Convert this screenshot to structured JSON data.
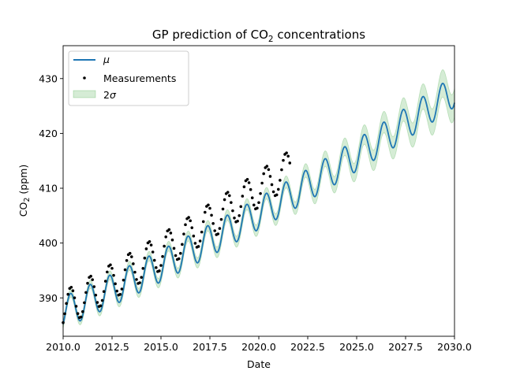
{
  "chart_data": {
    "type": "line",
    "title_main": "GP prediction of CO",
    "title_sub": "2",
    "title_tail": " concentrations",
    "xlabel": "Date",
    "ylabel_main": "CO",
    "ylabel_sub": "2",
    "ylabel_tail": " (ppm)",
    "xlim": [
      2010.0,
      2030.0
    ],
    "ylim": [
      383.0,
      436.0
    ],
    "x_ticks": [
      2010.0,
      2012.5,
      2015.0,
      2017.5,
      2020.0,
      2022.5,
      2025.0,
      2027.5,
      2030.0
    ],
    "x_tick_labels": [
      "2010.0",
      "2012.5",
      "2015.0",
      "2017.5",
      "2020.0",
      "2022.5",
      "2025.0",
      "2027.5",
      "2030.0"
    ],
    "y_ticks": [
      390,
      400,
      410,
      420,
      430
    ],
    "y_tick_labels": [
      "390",
      "400",
      "410",
      "420",
      "430"
    ],
    "grid": false,
    "legend_position": "top-left",
    "legend": {
      "mu_label": "μ",
      "measurements_label": "Measurements",
      "band_main": "2",
      "band_sigma": "σ"
    },
    "colors": {
      "mean_line": "#1f77b4",
      "measurements": "#000000",
      "band_fill": "#2ca02c"
    },
    "mean_model": {
      "intercept": 387.3,
      "slope_per_year": 1.6,
      "quadratic_per_year2": 0.021,
      "base_year": 2010.0,
      "seasonal_amplitude": 2.9,
      "peak_phase_year_fraction": 0.38,
      "sample_step_years": 0.02
    },
    "band": {
      "sigma_start": 0.35,
      "sigma_at_data_end": 0.55,
      "sigma_end": 1.3,
      "data_end_year": 2021.6
    },
    "measurements": {
      "start_year": 2010.0,
      "end_year": 2021.6,
      "step_years": 0.08333,
      "offset_start": 0.6,
      "offset_end": 5.0,
      "amplitude_boost": 0.4
    }
  }
}
